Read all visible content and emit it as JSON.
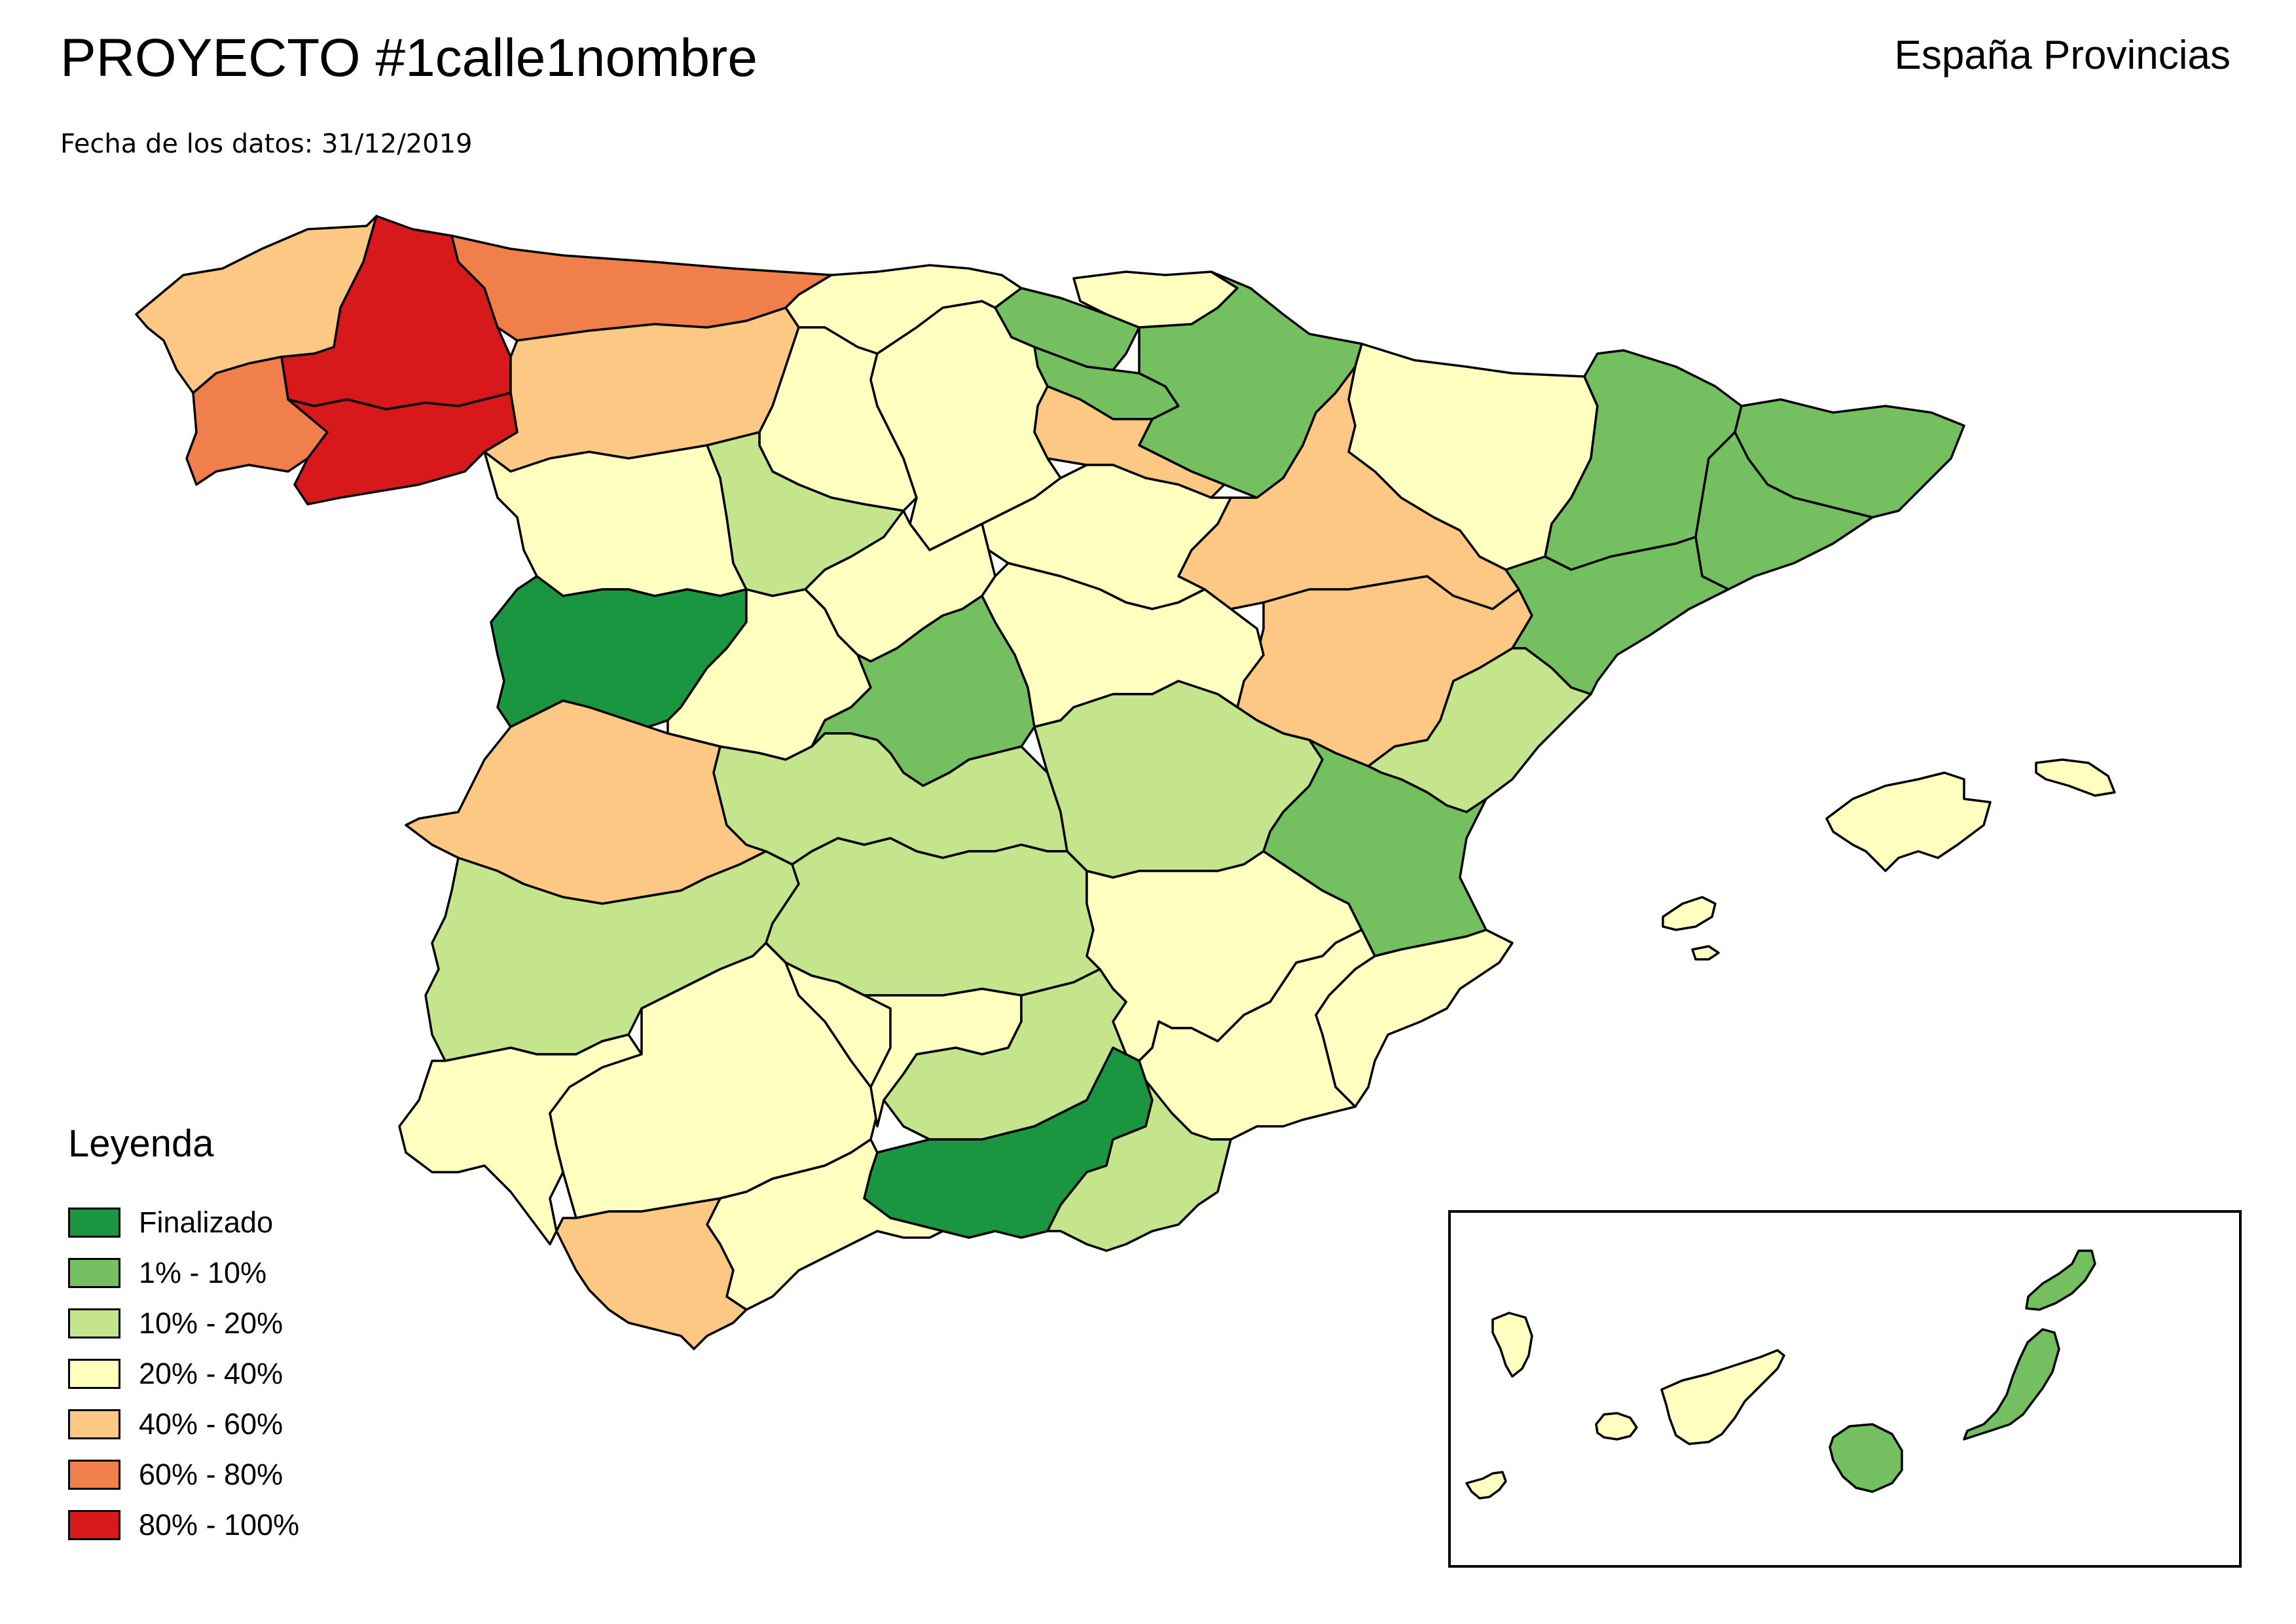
{
  "header": {
    "title": "PROYECTO #1calle1nombre",
    "subtitle": "Fecha de los datos: 31/12/2019",
    "region": "España Provincias"
  },
  "legend": {
    "title": "Leyenda",
    "items": [
      {
        "label": "Finalizado",
        "color": "#1a9641"
      },
      {
        "label": "1% - 10%",
        "color": "#74c060"
      },
      {
        "label": "10% - 20%",
        "color": "#c4e58b"
      },
      {
        "label": "20% - 40%",
        "color": "#ffffc0"
      },
      {
        "label": "40% - 60%",
        "color": "#fdc784"
      },
      {
        "label": "60% - 80%",
        "color": "#f07f4c"
      },
      {
        "label": "80% - 100%",
        "color": "#d7191c"
      }
    ]
  },
  "provinces": [
    {
      "name": "A Coruña",
      "category": "40% - 60%"
    },
    {
      "name": "Lugo",
      "category": "80% - 100%"
    },
    {
      "name": "Pontevedra",
      "category": "60% - 80%"
    },
    {
      "name": "Ourense",
      "category": "80% - 100%"
    },
    {
      "name": "Asturias",
      "category": "60% - 80%"
    },
    {
      "name": "Cantabria",
      "category": "20% - 40%"
    },
    {
      "name": "Bizkaia",
      "category": "1% - 10%"
    },
    {
      "name": "Gipuzkoa",
      "category": "20% - 40%"
    },
    {
      "name": "Álava",
      "category": "1% - 10%"
    },
    {
      "name": "Navarra",
      "category": "1% - 10%"
    },
    {
      "name": "La Rioja",
      "category": "40% - 60%"
    },
    {
      "name": "Huesca",
      "category": "20% - 40%"
    },
    {
      "name": "Zaragoza",
      "category": "40% - 60%"
    },
    {
      "name": "Teruel",
      "category": "40% - 60%"
    },
    {
      "name": "Lleida",
      "category": "1% - 10%"
    },
    {
      "name": "Girona",
      "category": "1% - 10%"
    },
    {
      "name": "Barcelona",
      "category": "1% - 10%"
    },
    {
      "name": "Tarragona",
      "category": "1% - 10%"
    },
    {
      "name": "León",
      "category": "40% - 60%"
    },
    {
      "name": "Palencia",
      "category": "20% - 40%"
    },
    {
      "name": "Burgos",
      "category": "20% - 40%"
    },
    {
      "name": "Zamora",
      "category": "20% - 40%"
    },
    {
      "name": "Valladolid",
      "category": "10% - 20%"
    },
    {
      "name": "Soria",
      "category": "20% - 40%"
    },
    {
      "name": "Salamanca",
      "category": "Finalizado"
    },
    {
      "name": "Ávila",
      "category": "20% - 40%"
    },
    {
      "name": "Segovia",
      "category": "20% - 40%"
    },
    {
      "name": "Madrid",
      "category": "1% - 10%"
    },
    {
      "name": "Guadalajara",
      "category": "20% - 40%"
    },
    {
      "name": "Cáceres",
      "category": "40% - 60%"
    },
    {
      "name": "Badajoz",
      "category": "10% - 20%"
    },
    {
      "name": "Toledo",
      "category": "10% - 20%"
    },
    {
      "name": "Cuenca",
      "category": "10% - 20%"
    },
    {
      "name": "Ciudad Real",
      "category": "10% - 20%"
    },
    {
      "name": "Albacete",
      "category": "20% - 40%"
    },
    {
      "name": "Castellón",
      "category": "10% - 20%"
    },
    {
      "name": "Valencia",
      "category": "1% - 10%"
    },
    {
      "name": "Alicante",
      "category": "20% - 40%"
    },
    {
      "name": "Murcia",
      "category": "20% - 40%"
    },
    {
      "name": "Huelva",
      "category": "20% - 40%"
    },
    {
      "name": "Sevilla",
      "category": "20% - 40%"
    },
    {
      "name": "Córdoba",
      "category": "20% - 40%"
    },
    {
      "name": "Jaén",
      "category": "10% - 20%"
    },
    {
      "name": "Granada",
      "category": "Finalizado"
    },
    {
      "name": "Almería",
      "category": "10% - 20%"
    },
    {
      "name": "Málaga",
      "category": "20% - 40%"
    },
    {
      "name": "Cádiz",
      "category": "40% - 60%"
    },
    {
      "name": "Illes Balears",
      "category": "20% - 40%"
    },
    {
      "name": "Santa Cruz de Tenerife",
      "category": "20% - 40%"
    },
    {
      "name": "Las Palmas",
      "category": "1% - 10%"
    }
  ]
}
